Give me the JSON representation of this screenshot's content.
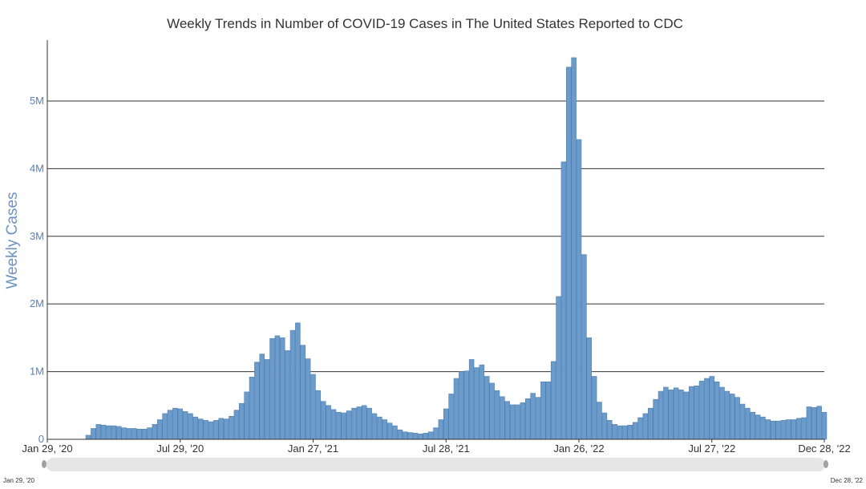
{
  "colors": {
    "bar_fill": "#6b9bcb",
    "bar_stroke": "#4f7fb0",
    "axis_label": "#6d93c3",
    "tick_label": "#5b7fb0",
    "navigator_track": "#e6e6e6",
    "navigator_handle": "#a0a0a0"
  },
  "navigator": {
    "start_label": "Jan 29, '20",
    "end_label": "Dec 28, '22"
  },
  "chart_data": {
    "type": "bar",
    "title": "Weekly Trends in Number of COVID-19 Cases in The United States Reported to CDC",
    "ylabel": "Weekly Cases",
    "xlabel": "",
    "ylim": [
      0,
      5900000
    ],
    "grid": true,
    "y_ticks": [
      {
        "value": 0,
        "label": "0"
      },
      {
        "value": 1000000,
        "label": "1M"
      },
      {
        "value": 2000000,
        "label": "2M"
      },
      {
        "value": 3000000,
        "label": "3M"
      },
      {
        "value": 4000000,
        "label": "4M"
      },
      {
        "value": 5000000,
        "label": "5M"
      }
    ],
    "x_ticks": [
      {
        "week": 0,
        "label": "Jan 29, '20"
      },
      {
        "week": 26,
        "label": "Jul 29, '20"
      },
      {
        "week": 52,
        "label": "Jan 27, '21"
      },
      {
        "week": 78,
        "label": "Jul 28, '21"
      },
      {
        "week": 104,
        "label": "Jan 26, '22"
      },
      {
        "week": 130,
        "label": "Jul 27, '22"
      },
      {
        "week": 152,
        "label": "Dec 28, '22"
      }
    ],
    "start_week_label": "Jan 29, '20",
    "end_week_label": "Dec 28, '22",
    "values": [
      0,
      0,
      0,
      0,
      0,
      0,
      0,
      0,
      60000,
      160000,
      220000,
      210000,
      200000,
      200000,
      190000,
      170000,
      160000,
      160000,
      150000,
      150000,
      170000,
      220000,
      290000,
      380000,
      430000,
      460000,
      450000,
      410000,
      380000,
      330000,
      300000,
      280000,
      260000,
      280000,
      310000,
      300000,
      340000,
      430000,
      530000,
      700000,
      920000,
      1140000,
      1260000,
      1180000,
      1490000,
      1530000,
      1500000,
      1310000,
      1610000,
      1720000,
      1390000,
      1190000,
      960000,
      720000,
      560000,
      500000,
      440000,
      400000,
      390000,
      420000,
      460000,
      480000,
      500000,
      460000,
      380000,
      330000,
      290000,
      240000,
      200000,
      140000,
      110000,
      100000,
      90000,
      80000,
      90000,
      110000,
      170000,
      290000,
      450000,
      670000,
      900000,
      1000000,
      1010000,
      1180000,
      1060000,
      1100000,
      930000,
      830000,
      720000,
      630000,
      560000,
      510000,
      510000,
      540000,
      600000,
      680000,
      620000,
      850000,
      850000,
      1150000,
      2110000,
      4100000,
      5500000,
      5640000,
      4430000,
      2730000,
      1500000,
      930000,
      550000,
      390000,
      280000,
      220000,
      200000,
      200000,
      210000,
      250000,
      320000,
      380000,
      460000,
      590000,
      710000,
      770000,
      730000,
      760000,
      730000,
      700000,
      780000,
      790000,
      860000,
      900000,
      930000,
      850000,
      770000,
      710000,
      670000,
      620000,
      520000,
      460000,
      400000,
      360000,
      330000,
      290000,
      270000,
      270000,
      280000,
      290000,
      290000,
      310000,
      320000,
      480000,
      470000,
      490000,
      400000
    ]
  }
}
